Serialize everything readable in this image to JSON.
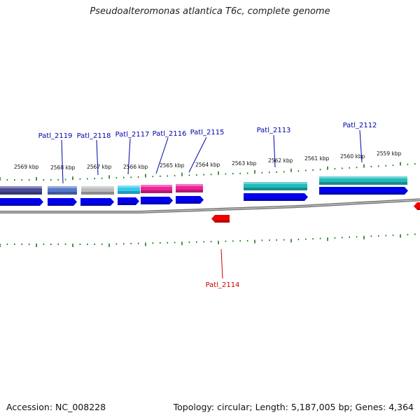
{
  "title": "Pseudoalteromonas atlantica T6c, complete genome",
  "footer": {
    "accession": "Accession: NC_008228",
    "summary": "Topology: circular; Length: 5,187,005 bp; Genes: 4,364"
  },
  "colors": {
    "forward_cds": "#0000ee",
    "reverse_cds": "#ee0000",
    "forward_label": "#0000aa",
    "reverse_label": "#cc0000",
    "backbone": "#888888",
    "ticks": "#1a7a1a"
  },
  "kbp_ticks": [
    "2569 kbp",
    "2568 kbp",
    "2567 kbp",
    "2566 kbp",
    "2565 kbp",
    "2564 kbp",
    "2563 kbp",
    "2562 kbp",
    "2561 kbp",
    "2560 kbp",
    "2559 kbp"
  ],
  "genes_forward": [
    {
      "label": "",
      "feature_color": "#4a4a9a"
    },
    {
      "label": "Patl_2119",
      "feature_color": "#5577cc"
    },
    {
      "label": "Patl_2118",
      "feature_color": "#bbbbbb"
    },
    {
      "label": "Patl_2117",
      "feature_color": "#33ccee"
    },
    {
      "label": "Patl_2116",
      "feature_color": "#ee2299"
    },
    {
      "label": "Patl_2115",
      "feature_color": "#ee2299"
    },
    {
      "label": "Patl_2113",
      "feature_color": "#22bbbb"
    },
    {
      "label": "Patl_2112",
      "feature_color": "#22bbbb"
    }
  ],
  "genes_reverse": [
    {
      "label": "Patl_2114"
    },
    {
      "label": ""
    }
  ]
}
